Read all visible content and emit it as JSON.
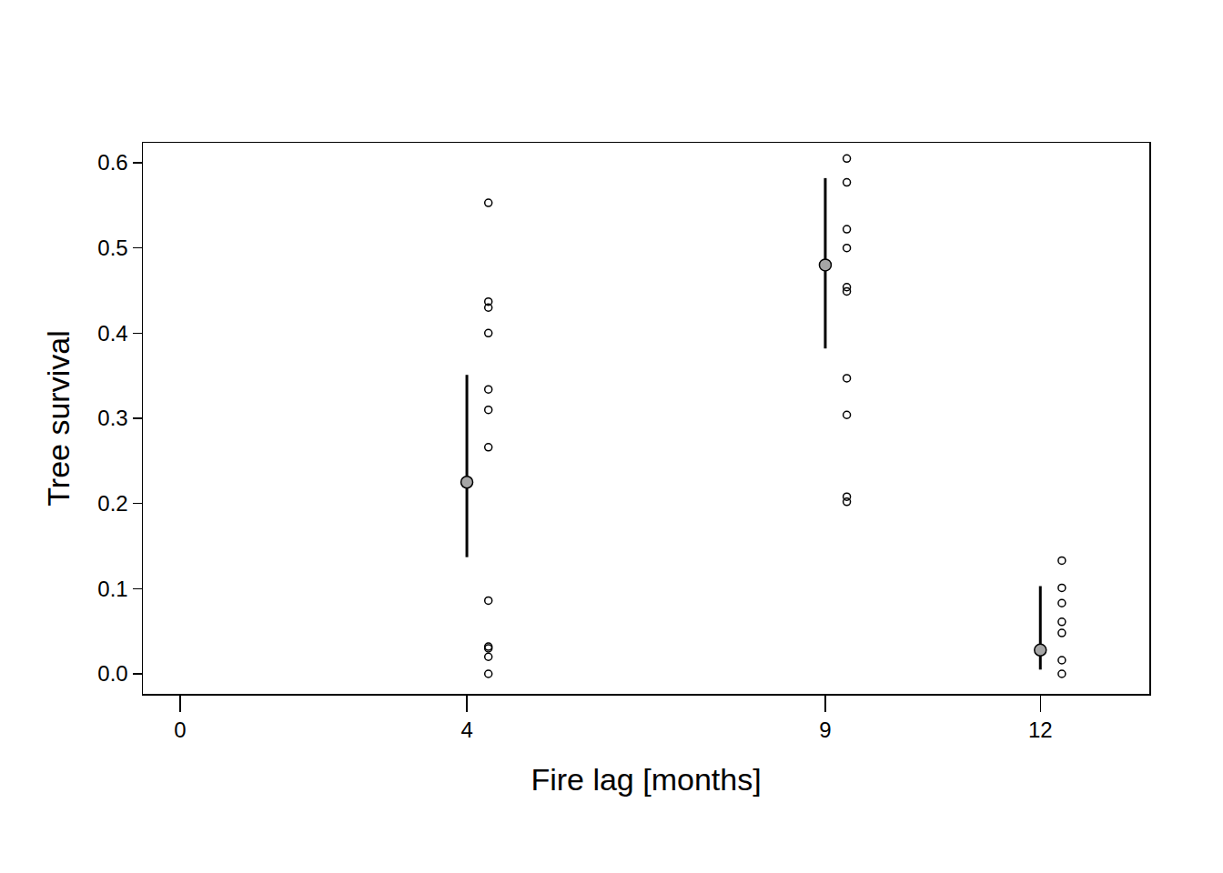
{
  "chart_data": {
    "type": "scatter",
    "x_label": "Fire lag [months]",
    "y_label": "Tree survival",
    "xlim": [
      -0.52,
      13.52
    ],
    "xticks": [
      0,
      4,
      9,
      12
    ],
    "ylim": [
      -0.0235,
      0.6235
    ],
    "yticks": [
      {
        "value": 0,
        "label": "0.0"
      },
      {
        "value": 0.1,
        "label": "0.1"
      },
      {
        "value": 0.2,
        "label": "0.2"
      },
      {
        "value": 0.3,
        "label": "0.3"
      },
      {
        "value": 0.4,
        "label": "0.4"
      },
      {
        "value": 0.5,
        "label": "0.5"
      },
      {
        "value": 0.6,
        "label": "0.6"
      }
    ],
    "grid": false,
    "series": [
      {
        "type": "scatter",
        "marker": "circle",
        "color": "#a6a6a6",
        "x": [
          4,
          9,
          12
        ],
        "values": [
          0.225,
          0.48,
          0.028
        ],
        "error_low": [
          0.137,
          0.382,
          0.005
        ],
        "error_high": [
          0.351,
          0.582,
          0.103
        ]
      },
      {
        "type": "scatter",
        "marker": "open_circle",
        "color": "#000000",
        "x": [
          4.3,
          4.3,
          4.3,
          4.3,
          4.3,
          4.3,
          4.3,
          4.3,
          4.3,
          4.3,
          4.3,
          4.3,
          9.3,
          9.3,
          9.3,
          9.3,
          9.3,
          9.3,
          9.3,
          9.3,
          9.3,
          9.3,
          12.3,
          12.3,
          12.3,
          12.3,
          12.3,
          12.3,
          12.3
        ],
        "values": [
          0.553,
          0.437,
          0.43,
          0.4,
          0.334,
          0.31,
          0.266,
          0.086,
          0.032,
          0.03,
          0.02,
          0.0,
          0.605,
          0.577,
          0.522,
          0.5,
          0.454,
          0.449,
          0.347,
          0.304,
          0.208,
          0.202,
          0.133,
          0.101,
          0.083,
          0.061,
          0.048,
          0.016,
          0.0
        ]
      }
    ]
  }
}
